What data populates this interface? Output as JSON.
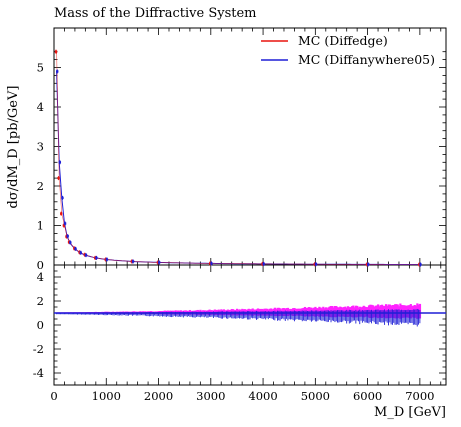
{
  "chart_data": {
    "type": "scatter",
    "title": "Mass of the Diffractive System",
    "xlabel": "M_D [GeV]",
    "ylabel": "dσ/dM_D [pb/GeV]",
    "xlim": [
      0,
      7500
    ],
    "ylim": [
      0,
      6
    ],
    "ratio_ylim": [
      -5,
      5
    ],
    "x_ticks": [
      0,
      1000,
      2000,
      3000,
      4000,
      5000,
      6000,
      7000
    ],
    "x_tick_labels": [
      "0",
      "1000",
      "2000",
      "3000",
      "4000",
      "5000",
      "6000",
      "7000"
    ],
    "y_ticks": [
      0,
      1,
      2,
      3,
      4,
      5
    ],
    "y_tick_labels": [
      "0",
      "1",
      "2",
      "3",
      "4",
      "5"
    ],
    "ratio_ticks": [
      -4,
      -2,
      0,
      2,
      4
    ],
    "ratio_tick_labels": [
      "-4",
      "-2",
      "0",
      "2",
      "4"
    ],
    "legend_position": "top-right",
    "grid": false,
    "colors": {
      "diffedge": "#e8140f",
      "diffanywhere": "#1f1fd6",
      "ratio_band": "#ff22ff",
      "ratio_line": "#1f1fd6"
    },
    "series": [
      {
        "name": "MC (Diffedge)",
        "color": "#e8140f",
        "x": [
          50,
          100,
          150,
          200,
          250,
          300,
          400,
          500,
          600,
          800,
          1000,
          1500,
          2000,
          3000,
          4000,
          5000,
          6000,
          7000
        ],
        "y": [
          5.4,
          2.2,
          1.3,
          1.0,
          0.72,
          0.58,
          0.42,
          0.32,
          0.26,
          0.18,
          0.14,
          0.09,
          0.065,
          0.04,
          0.028,
          0.02,
          0.015,
          0.012
        ]
      },
      {
        "name": "MC (Diffanywhere05)",
        "color": "#1f1fd6",
        "x": [
          50,
          100,
          150,
          200,
          250,
          300,
          400,
          500,
          600,
          800,
          1000,
          1500,
          2000,
          3000,
          4000,
          5000,
          6000,
          7000
        ],
        "y": [
          4.9,
          2.6,
          1.7,
          1.05,
          0.73,
          0.57,
          0.41,
          0.31,
          0.25,
          0.18,
          0.14,
          0.09,
          0.066,
          0.04,
          0.028,
          0.02,
          0.015,
          0.012
        ]
      }
    ]
  }
}
